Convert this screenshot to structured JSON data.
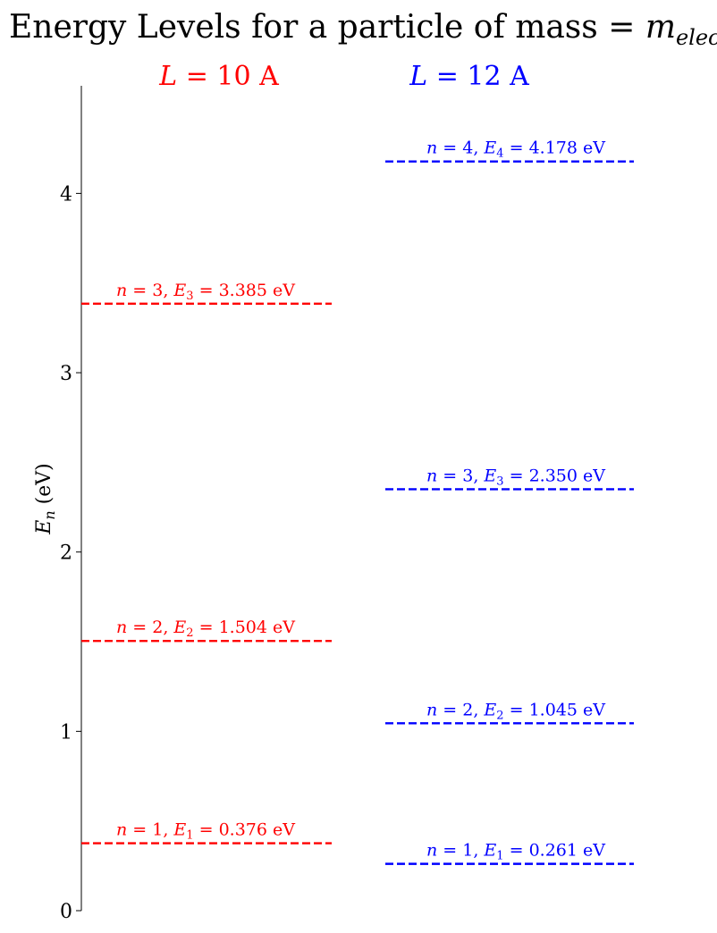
{
  "chart_data": {
    "type": "energy-level",
    "title": {
      "text": "Energy Levels for a particle of mass = ",
      "math_symbol": "m",
      "math_subscript": "electron"
    },
    "ylabel": {
      "symbol": "E",
      "subscript": "n",
      "unit": " (eV)"
    },
    "ylim": [
      0,
      4.6
    ],
    "yticks": [
      0,
      1,
      2,
      3,
      4
    ],
    "grid": false,
    "legend": "none",
    "groups": [
      {
        "name": "L = 10 A",
        "title_symbol": "L",
        "title_rest": " = 10 A",
        "color": "#ff0000",
        "levels": [
          {
            "n": 1,
            "energy": 0.376,
            "label": "n = 1, E1 = 0.376 eV",
            "n_text": "1",
            "e_sub": "1",
            "e_text": "0.376 eV"
          },
          {
            "n": 2,
            "energy": 1.504,
            "label": "n = 2, E2 = 1.504 eV",
            "n_text": "2",
            "e_sub": "2",
            "e_text": "1.504 eV"
          },
          {
            "n": 3,
            "energy": 3.385,
            "label": "n = 3, E3 = 3.385 eV",
            "n_text": "3",
            "e_sub": "3",
            "e_text": "3.385 eV"
          }
        ]
      },
      {
        "name": "L = 12 A",
        "title_symbol": "L",
        "title_rest": " = 12 A",
        "color": "#0000ff",
        "levels": [
          {
            "n": 1,
            "energy": 0.261,
            "label": "n = 1, E1 = 0.261 eV",
            "n_text": "1",
            "e_sub": "1",
            "e_text": "0.261 eV"
          },
          {
            "n": 2,
            "energy": 1.045,
            "label": "n = 2, E2 = 1.045 eV",
            "n_text": "2",
            "e_sub": "2",
            "e_text": "1.045 eV"
          },
          {
            "n": 3,
            "energy": 2.35,
            "label": "n = 3, E3 = 2.350 eV",
            "n_text": "3",
            "e_sub": "3",
            "e_text": "2.350 eV"
          },
          {
            "n": 4,
            "energy": 4.178,
            "label": "n = 4, E4 = 4.178 eV",
            "n_text": "4",
            "e_sub": "4",
            "e_text": "4.178 eV"
          }
        ]
      }
    ]
  }
}
